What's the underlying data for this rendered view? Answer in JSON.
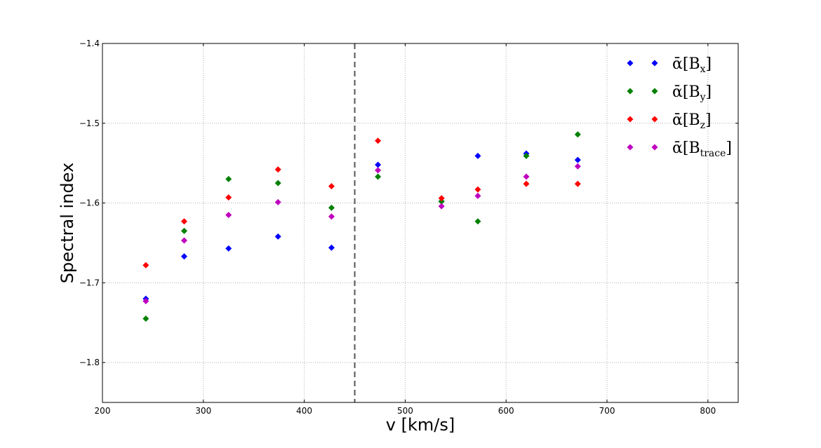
{
  "chart_data": {
    "type": "scatter",
    "xlabel": "v [km/s]",
    "ylabel": "Spectral index",
    "xlim": [
      200,
      830
    ],
    "ylim": [
      -1.85,
      -1.4
    ],
    "xticks": [
      200,
      300,
      400,
      500,
      600,
      700,
      800
    ],
    "yticks": [
      -1.8,
      -1.7,
      -1.6,
      -1.5,
      -1.4
    ],
    "xtick_labels": [
      "200",
      "300",
      "400",
      "500",
      "600",
      "700",
      "800"
    ],
    "ytick_labels": [
      "−1.8",
      "−1.7",
      "−1.6",
      "−1.5",
      "−1.4"
    ],
    "grid": true,
    "legend_position": "top-right",
    "vertical_line": {
      "x": 450,
      "style": "dashed",
      "color": "#555555"
    },
    "x": [
      243,
      281,
      325,
      374,
      427,
      473,
      536,
      572,
      620,
      671
    ],
    "series": [
      {
        "name": "ᾱ[B",
        "sub": "x",
        "color": "#0000ff",
        "values": [
          -1.72,
          -1.667,
          -1.657,
          -1.642,
          -1.656,
          -1.552,
          -1.598,
          -1.541,
          -1.538,
          -1.546
        ]
      },
      {
        "name": "ᾱ[B",
        "sub": "y",
        "color": "#008000",
        "values": [
          -1.745,
          -1.635,
          -1.57,
          -1.575,
          -1.606,
          -1.567,
          -1.598,
          -1.623,
          -1.541,
          -1.514
        ]
      },
      {
        "name": "ᾱ[B",
        "sub": "z",
        "color": "#ff0000",
        "values": [
          -1.678,
          -1.623,
          -1.593,
          -1.558,
          -1.579,
          -1.522,
          -1.594,
          -1.583,
          -1.576,
          -1.576
        ]
      },
      {
        "name": "ᾱ[B",
        "sub": "trace",
        "color": "#bf00bf",
        "values": [
          -1.723,
          -1.647,
          -1.615,
          -1.599,
          -1.617,
          -1.559,
          -1.604,
          -1.591,
          -1.567,
          -1.554
        ]
      }
    ]
  }
}
